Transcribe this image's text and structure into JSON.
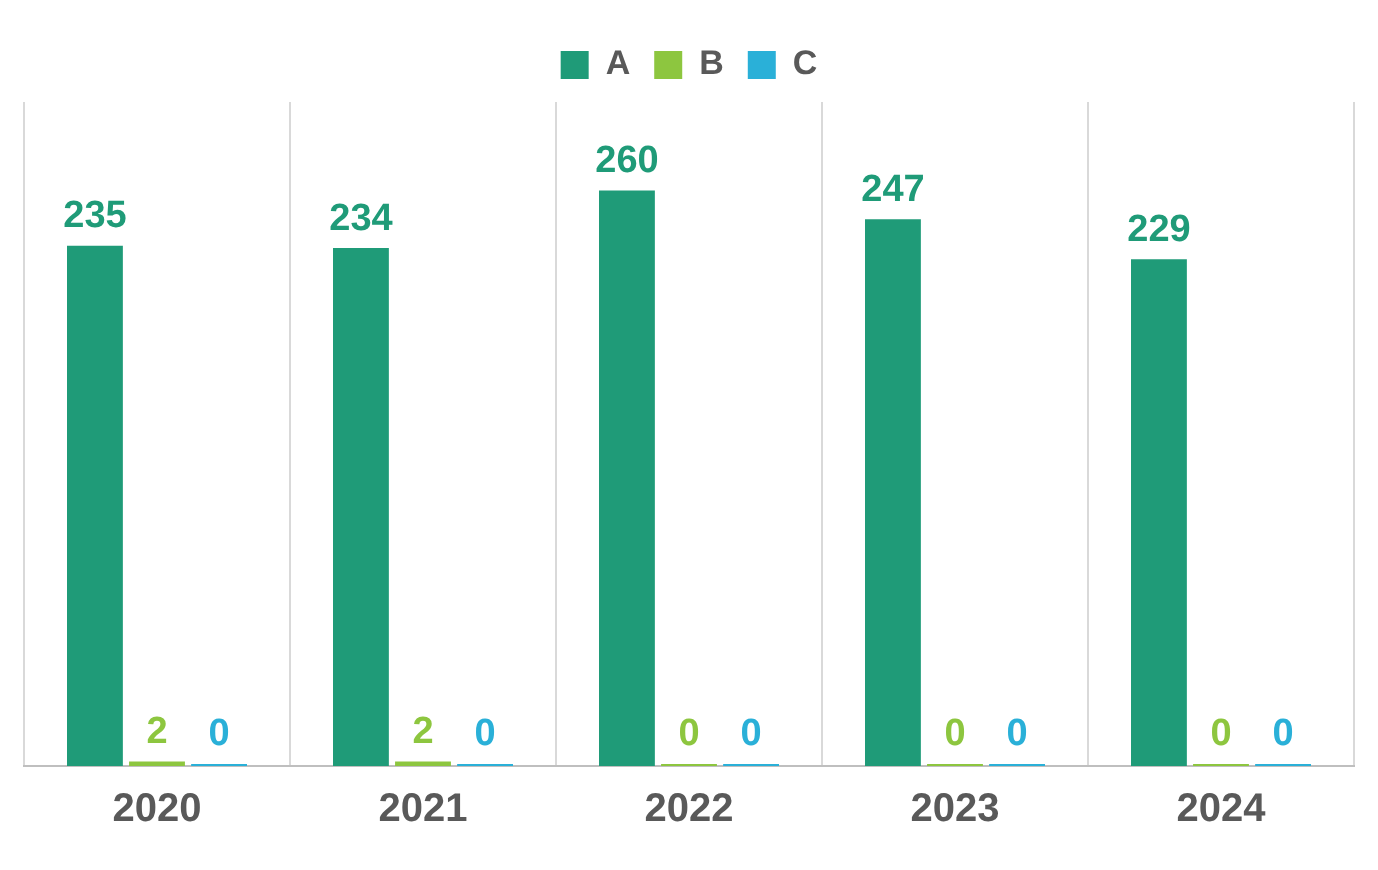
{
  "chart_data": {
    "type": "bar",
    "categories": [
      "2020",
      "2021",
      "2022",
      "2023",
      "2024"
    ],
    "series": [
      {
        "name": "A",
        "color": "#1f9b78",
        "values": [
          235,
          234,
          260,
          247,
          229
        ]
      },
      {
        "name": "B",
        "color": "#8dc63f",
        "values": [
          2,
          2,
          0,
          0,
          0
        ]
      },
      {
        "name": "C",
        "color": "#2ab0d8",
        "values": [
          0,
          0,
          0,
          0,
          0
        ]
      }
    ],
    "data_labels": true,
    "legend": "top",
    "grid": "x"
  }
}
